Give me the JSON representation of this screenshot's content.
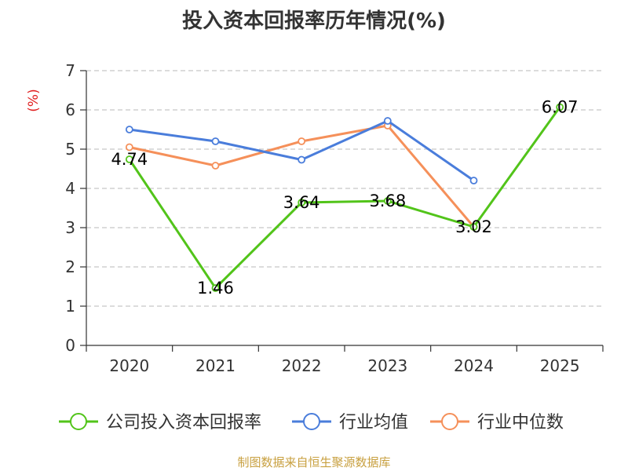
{
  "chart_data": {
    "type": "line",
    "title": "投入资本回报率历年情况(%)",
    "ylabel": "(%)",
    "xlabel": "",
    "ylim": [
      0,
      7
    ],
    "yticks": [
      0,
      1,
      2,
      3,
      4,
      5,
      6,
      7
    ],
    "categories": [
      "2020",
      "2021",
      "2022",
      "2023",
      "2024",
      "2025"
    ],
    "grid": true,
    "legend_position": "bottom",
    "series": [
      {
        "name": "公司投入资本回报率",
        "color": "#52c41a",
        "values": [
          4.74,
          1.46,
          3.64,
          3.68,
          3.02,
          6.07
        ],
        "labels": [
          "4.74",
          "1.46",
          "3.64",
          "3.68",
          "3.02",
          "6.07"
        ]
      },
      {
        "name": "行业均值",
        "color": "#4a7ddb",
        "values": [
          5.5,
          5.2,
          4.73,
          5.72,
          4.2,
          null
        ]
      },
      {
        "name": "行业中位数",
        "color": "#f5905a",
        "values": [
          5.05,
          4.58,
          5.2,
          5.6,
          3.02,
          null
        ]
      }
    ]
  },
  "source": "制图数据来自恒生聚源数据库"
}
